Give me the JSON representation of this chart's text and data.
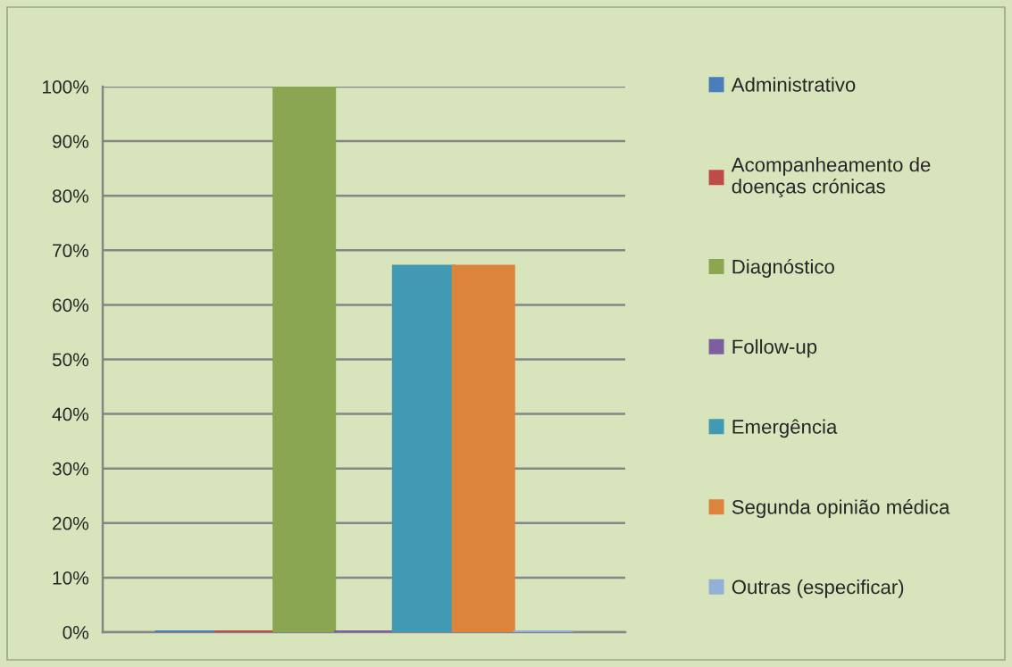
{
  "chart_data": {
    "type": "bar",
    "categories": [
      null
    ],
    "series": [
      {
        "name": "Administrativo",
        "color": "#4a7ebb",
        "values": [
          0
        ]
      },
      {
        "name": "Acompanheamento de\ndoenças crónicas",
        "color": "#be4b48",
        "values": [
          0
        ]
      },
      {
        "name": "Diagnóstico",
        "color": "#8ba650",
        "values": [
          100
        ]
      },
      {
        "name": "Follow-up",
        "color": "#7d5fa0",
        "values": [
          0
        ]
      },
      {
        "name": "Emergência",
        "color": "#4299b3",
        "values": [
          67
        ]
      },
      {
        "name": "Segunda opinião médica",
        "color": "#dd843c",
        "values": [
          67
        ]
      },
      {
        "name": "Outras (especificar)",
        "color": "#93b0d6",
        "values": [
          0
        ]
      }
    ],
    "ylim": [
      0,
      100
    ],
    "yticks": [
      {
        "value": 0,
        "label": "0%"
      },
      {
        "value": 10,
        "label": "10%"
      },
      {
        "value": 20,
        "label": "20%"
      },
      {
        "value": 30,
        "label": "30%"
      },
      {
        "value": 40,
        "label": "40%"
      },
      {
        "value": 50,
        "label": "50%"
      },
      {
        "value": 60,
        "label": "60%"
      },
      {
        "value": 70,
        "label": "70%"
      },
      {
        "value": 80,
        "label": "80%"
      },
      {
        "value": 90,
        "label": "90%"
      },
      {
        "value": 100,
        "label": "100%"
      }
    ],
    "grid": "y",
    "legend": "right",
    "tick_labels": "y"
  }
}
